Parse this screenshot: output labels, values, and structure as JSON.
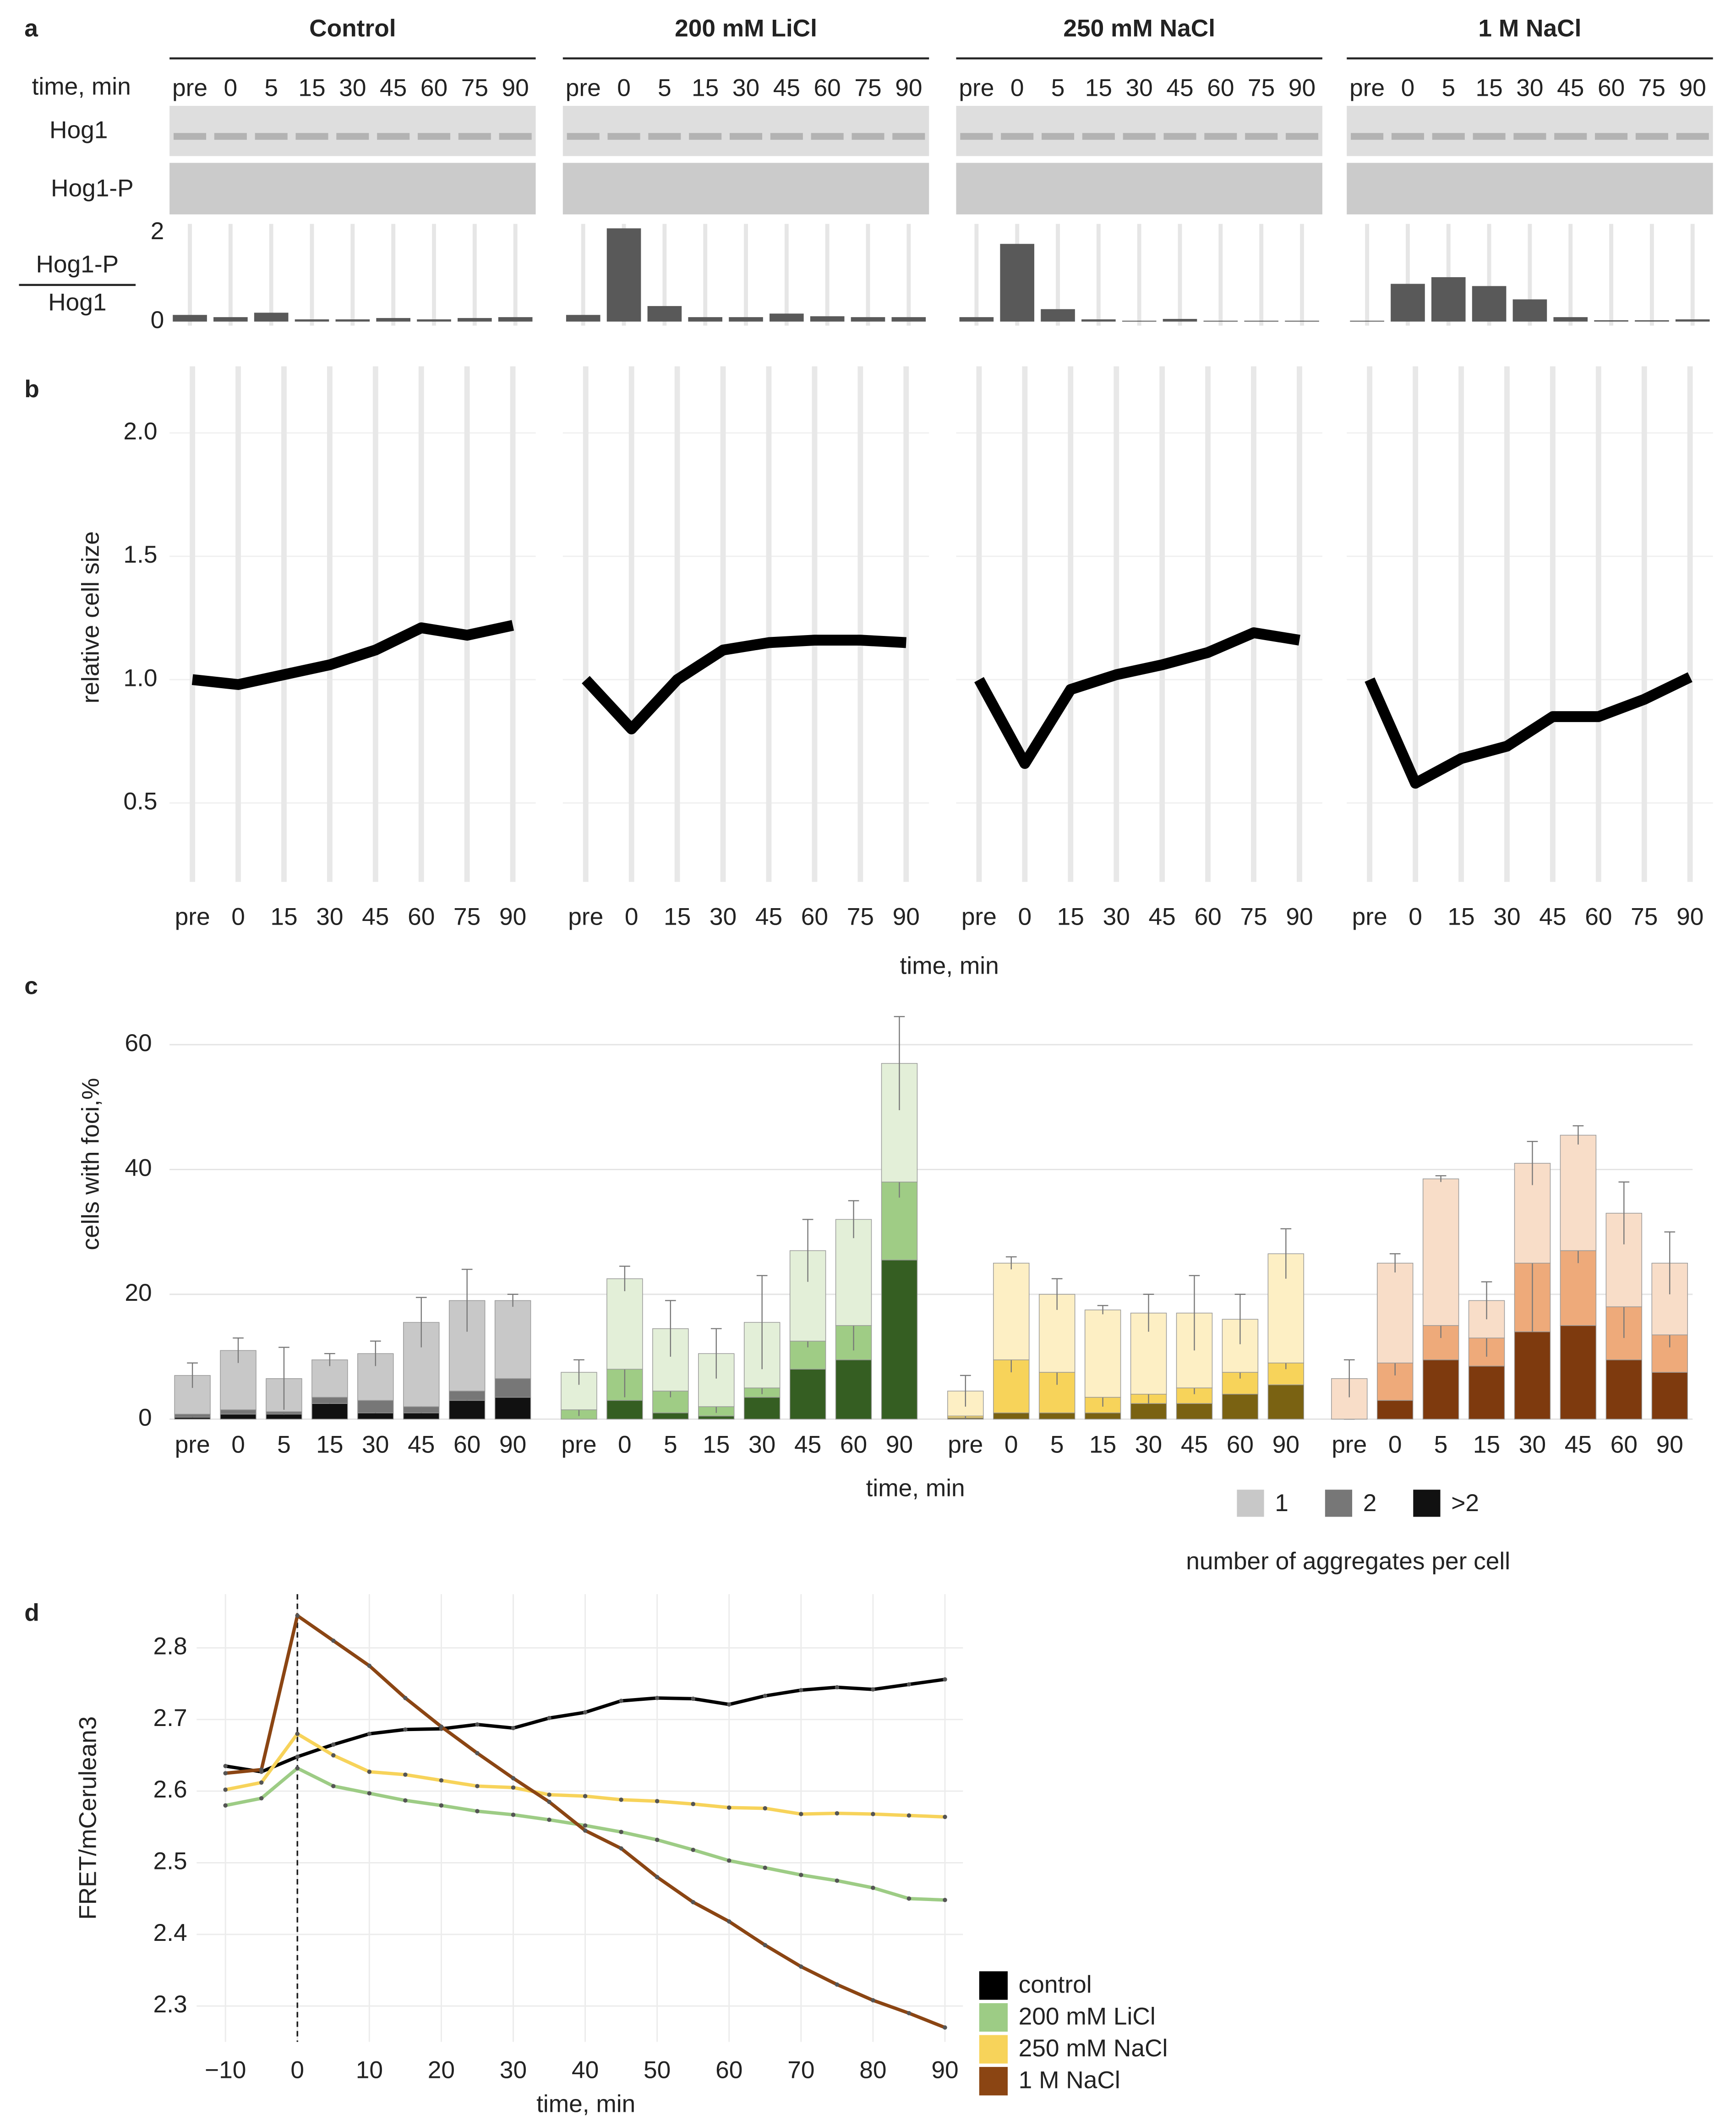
{
  "chart_data": [
    {
      "panel": "a",
      "type": "bar",
      "color": "#595959",
      "time_label": "time, min",
      "row_labels": [
        "Hog1",
        "Hog1-P"
      ],
      "ylabel": {
        "numerator": "Hog1-P",
        "denominator": "Hog1"
      },
      "categories": [
        "pre",
        "0",
        "5",
        "15",
        "30",
        "45",
        "60",
        "75",
        "90"
      ],
      "ylim": [
        0,
        2.2
      ],
      "yticks": [
        0,
        2
      ],
      "groups": [
        {
          "title": "Control",
          "values": [
            0.15,
            0.1,
            0.2,
            0.05,
            0.05,
            0.08,
            0.05,
            0.08,
            0.1
          ]
        },
        {
          "title": "200 mM LiCl",
          "values": [
            0.15,
            2.1,
            0.35,
            0.1,
            0.1,
            0.18,
            0.12,
            0.1,
            0.1
          ]
        },
        {
          "title": "250 mM NaCl",
          "values": [
            0.1,
            1.75,
            0.28,
            0.05,
            0.02,
            0.06,
            0.02,
            0.02,
            0.02
          ]
        },
        {
          "title": "1 M NaCl",
          "values": [
            0.02,
            0.85,
            1.0,
            0.8,
            0.5,
            0.1,
            0.03,
            0.03,
            0.05
          ]
        }
      ]
    },
    {
      "panel": "b",
      "type": "line",
      "color": "#000000",
      "grid": true,
      "ylabel": "relative cell size",
      "xlabel": "time, min",
      "categories": [
        "pre",
        "0",
        "15",
        "30",
        "45",
        "60",
        "75",
        "90"
      ],
      "ylim": [
        0.18,
        2.27
      ],
      "yticks": [
        0.5,
        {
          "value": 1,
          "label": "1.0"
        },
        1.5,
        {
          "value": 2,
          "label": "2.0"
        }
      ],
      "groups": [
        {
          "values": [
            1.0,
            0.98,
            1.02,
            1.06,
            1.12,
            1.21,
            1.18,
            1.22
          ]
        },
        {
          "values": [
            1.0,
            0.8,
            1.0,
            1.12,
            1.15,
            1.16,
            1.16,
            1.15
          ]
        },
        {
          "values": [
            1.0,
            0.66,
            0.96,
            1.02,
            1.06,
            1.11,
            1.19,
            1.16
          ]
        },
        {
          "values": [
            1.0,
            0.58,
            0.68,
            0.73,
            0.85,
            0.85,
            0.92,
            1.01
          ]
        }
      ]
    },
    {
      "panel": "c",
      "type": "bar",
      "stacked": true,
      "grid": true,
      "ylabel": "cells with foci,%",
      "xlabel": "time, min",
      "legend_title": "number of aggregates per cell",
      "legend": "bottom-right",
      "categories": [
        "pre",
        "0",
        "5",
        "15",
        "30",
        "45",
        "60",
        "90"
      ],
      "ylim": [
        0,
        65
      ],
      "yticks": [
        0,
        20,
        40,
        60
      ],
      "groups": [
        {
          "series": [
            {
              "name": "1",
              "color": "#c8c8c8",
              "values": [
                6.2,
                9.5,
                5.3,
                6,
                7.5,
                13.5,
                14.5,
                12.5
              ],
              "errors": [
                2,
                2,
                5,
                1,
                2,
                4,
                5,
                1
              ]
            },
            {
              "name": "2",
              "color": "#777777",
              "values": [
                0.5,
                0.7,
                0.4,
                1,
                2,
                1,
                1.5,
                3
              ],
              "errors": [
                0.5,
                0.5,
                0.5,
                1,
                2,
                1,
                1.5,
                2.5
              ]
            },
            {
              "name": ">2",
              "color": "#111111",
              "values": [
                0.3,
                0.8,
                0.8,
                2.5,
                1,
                1,
                3,
                3.5
              ]
            }
          ]
        },
        {
          "series": [
            {
              "name": "1",
              "color": "#e3efd8",
              "values": [
                6,
                14.5,
                10,
                8.5,
                10.5,
                14.5,
                17,
                19
              ],
              "errors": [
                2,
                2,
                4.5,
                4,
                7.5,
                5,
                3,
                7.5
              ]
            },
            {
              "name": "2",
              "color": "#9fcc85",
              "values": [
                1.5,
                5,
                3.5,
                1.5,
                1.5,
                4.5,
                5.5,
                12.5
              ],
              "errors": [
                1,
                4.5,
                1,
                1,
                1,
                1,
                4,
                2.5
              ]
            },
            {
              "name": ">2",
              "color": "#355e22",
              "values": [
                0,
                3,
                1,
                0.5,
                3.5,
                8,
                9.5,
                25.5
              ]
            }
          ]
        },
        {
          "series": [
            {
              "name": "1",
              "color": "#fdefc4",
              "values": [
                4,
                15.5,
                12.5,
                14,
                13,
                12,
                8.5,
                17.5
              ],
              "errors": [
                2.5,
                1,
                2.5,
                0.7,
                3,
                6,
                4,
                4
              ]
            },
            {
              "name": "2",
              "color": "#f7d35a",
              "values": [
                0.3,
                8.5,
                6.5,
                2.5,
                1.5,
                2.5,
                3.5,
                3.5
              ],
              "errors": [
                0.5,
                2,
                2,
                1.5,
                1.5,
                1,
                1,
                1
              ]
            },
            {
              "name": ">2",
              "color": "#7a6212",
              "values": [
                0.2,
                1,
                1,
                1,
                2.5,
                2.5,
                4,
                5.5
              ]
            }
          ]
        },
        {
          "series": [
            {
              "name": "1",
              "color": "#f8ddc8",
              "values": [
                6.5,
                16,
                23.5,
                6,
                16,
                18.5,
                15,
                11.5
              ],
              "errors": [
                3,
                1.5,
                0.5,
                3,
                3.5,
                1.5,
                5,
                5
              ]
            },
            {
              "name": "2",
              "color": "#eeaa7a",
              "values": [
                0,
                6,
                5.5,
                4.5,
                11,
                12,
                8.5,
                6
              ],
              "errors": [
                0,
                2,
                2,
                3,
                11,
                2,
                5,
                2
              ]
            },
            {
              "name": ">2",
              "color": "#7e3a0e",
              "values": [
                0,
                3,
                9.5,
                8.5,
                14,
                15,
                9.5,
                7.5
              ]
            }
          ]
        }
      ]
    },
    {
      "panel": "d",
      "type": "line",
      "grid": true,
      "legend": "bottom-right",
      "vline": 0,
      "ylabel": "FRET/mCerulean3",
      "xlabel": "time, min",
      "x": [
        -10,
        -5,
        0,
        5,
        10,
        15,
        20,
        25,
        30,
        35,
        40,
        45,
        50,
        55,
        60,
        65,
        70,
        75,
        80,
        85,
        90
      ],
      "xlim": [
        -14,
        92.5
      ],
      "xticks": [
        {
          "value": -10,
          "label": "−10"
        },
        0,
        10,
        20,
        30,
        40,
        50,
        60,
        70,
        80,
        90
      ],
      "ylim": [
        2.25,
        2.875
      ],
      "yticks": [
        2.3,
        2.4,
        2.5,
        2.6,
        2.7,
        2.8
      ],
      "series": [
        {
          "name": "control",
          "color": "#000000",
          "values": [
            2.635,
            2.627,
            2.648,
            2.665,
            2.68,
            2.686,
            2.687,
            2.693,
            2.688,
            2.702,
            2.71,
            2.726,
            2.73,
            2.729,
            2.721,
            2.733,
            2.741,
            2.745,
            2.742,
            2.749,
            2.756
          ]
        },
        {
          "name": "200 mM LiCl",
          "color": "#9dcc85",
          "values": [
            2.58,
            2.59,
            2.632,
            2.607,
            2.597,
            2.587,
            2.58,
            2.572,
            2.567,
            2.56,
            2.552,
            2.543,
            2.532,
            2.518,
            2.503,
            2.493,
            2.483,
            2.475,
            2.465,
            2.45,
            2.448
          ]
        },
        {
          "name": "250 mM NaCl",
          "color": "#f7d35a",
          "values": [
            2.602,
            2.612,
            2.68,
            2.65,
            2.627,
            2.623,
            2.615,
            2.607,
            2.605,
            2.595,
            2.593,
            2.588,
            2.586,
            2.582,
            2.577,
            2.576,
            2.568,
            2.569,
            2.568,
            2.566,
            2.564
          ]
        },
        {
          "name": "1 M NaCl",
          "color": "#8b4513",
          "values": [
            2.625,
            2.63,
            2.845,
            2.81,
            2.775,
            2.73,
            2.69,
            2.653,
            2.618,
            2.585,
            2.545,
            2.52,
            2.48,
            2.445,
            2.418,
            2.385,
            2.355,
            2.33,
            2.308,
            2.29,
            2.27
          ]
        }
      ]
    }
  ]
}
